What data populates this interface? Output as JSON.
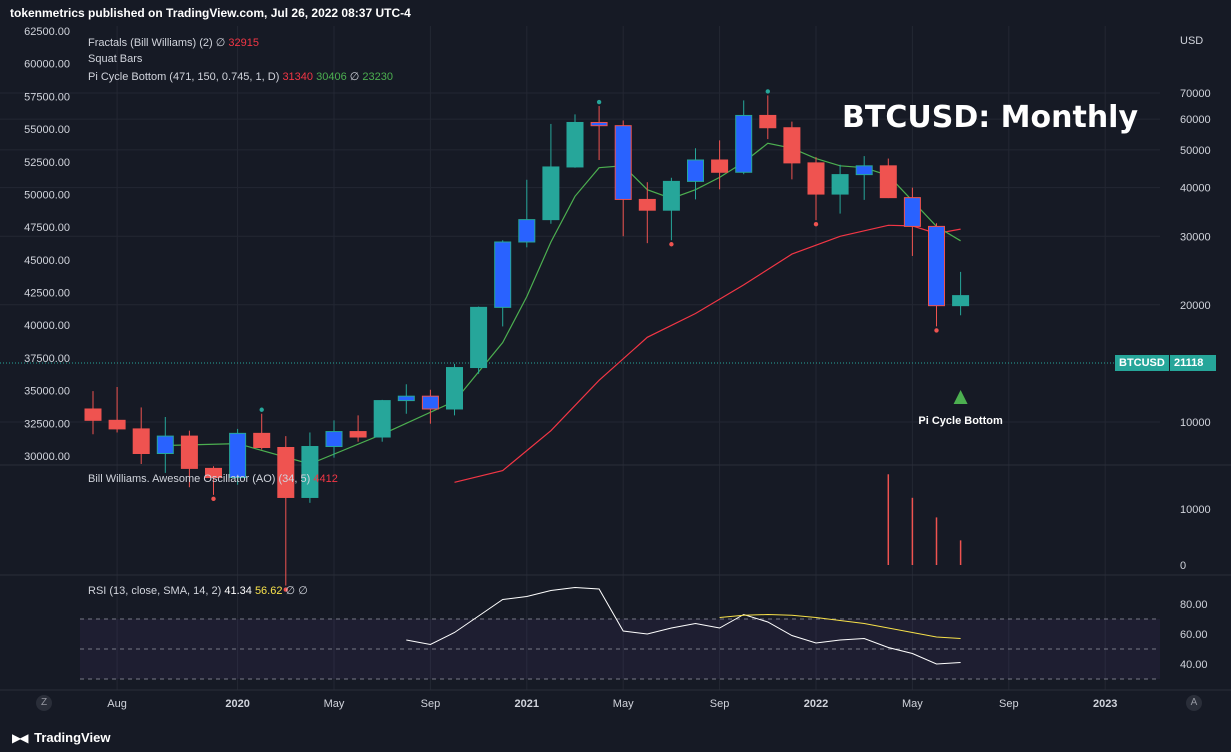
{
  "header": {
    "publisher_line": "tokenmetrics published on TradingView.com, Jul 26, 2022 08:37 UTC-4"
  },
  "footer": {
    "brand": "TradingView",
    "zoom_btn": "Z",
    "auto_btn": "A"
  },
  "colors": {
    "bg": "#161a25",
    "up": "#26a69a",
    "down": "#ef5350",
    "squat": "#2962ff",
    "fast_ma": "#4caf50",
    "slow_ma": "#f23645",
    "rsi": "#ffffff",
    "rsi_ma": "#f7e14a"
  },
  "chart_data": {
    "type": "candlestick",
    "title": "BTCUSD: Monthly",
    "symbol": "BTCUSD",
    "last_price": "21118",
    "right_axis_label": "USD",
    "annotation": "Pi Cycle Bottom",
    "legend": {
      "fractals": {
        "name": "Fractals (Bill Williams) (2)",
        "sym": "∅",
        "value": "32915"
      },
      "squat": {
        "name": "Squat Bars"
      },
      "pi": {
        "name": "Pi Cycle Bottom (471, 150, 0.745, 1, D)",
        "v1": "31340",
        "v2": "30406",
        "sym": "∅",
        "v3": "23230"
      }
    },
    "left_axis_ticks": [
      "62500.00",
      "60000.00",
      "57500.00",
      "55000.00",
      "52500.00",
      "50000.00",
      "47500.00",
      "45000.00",
      "42500.00",
      "40000.00",
      "37500.00",
      "35000.00",
      "32500.00",
      "30000.00"
    ],
    "right_axis_ticks": [
      70000,
      60000,
      50000,
      40000,
      30000,
      20000,
      10000
    ],
    "x_tick_labels": [
      "Aug",
      "2020",
      "May",
      "Sep",
      "2021",
      "May",
      "Sep",
      "2022",
      "May",
      "Sep",
      "2023"
    ],
    "candles": [
      {
        "date": "2019-07",
        "open": 10800,
        "high": 12000,
        "low": 9300,
        "close": 10100,
        "squat": false
      },
      {
        "date": "2019-08",
        "open": 10100,
        "high": 12300,
        "low": 9400,
        "close": 9600,
        "squat": false
      },
      {
        "date": "2019-09",
        "open": 9600,
        "high": 10900,
        "low": 7800,
        "close": 8300,
        "squat": false
      },
      {
        "date": "2019-10",
        "open": 8300,
        "high": 10300,
        "low": 7400,
        "close": 9200,
        "squat": true
      },
      {
        "date": "2019-11",
        "open": 9200,
        "high": 9500,
        "low": 6800,
        "close": 7600,
        "squat": false
      },
      {
        "date": "2019-12",
        "open": 7600,
        "high": 7700,
        "low": 6500,
        "close": 7200,
        "squat": false
      },
      {
        "date": "2020-01",
        "open": 7200,
        "high": 9600,
        "low": 6900,
        "close": 9350,
        "squat": true
      },
      {
        "date": "2020-02",
        "open": 9350,
        "high": 10500,
        "low": 8500,
        "close": 8600,
        "squat": false
      },
      {
        "date": "2020-03",
        "open": 8600,
        "high": 9200,
        "low": 3800,
        "close": 6400,
        "squat": false
      },
      {
        "date": "2020-04",
        "open": 6400,
        "high": 9400,
        "low": 6200,
        "close": 8650,
        "squat": false
      },
      {
        "date": "2020-05",
        "open": 8650,
        "high": 10100,
        "low": 8100,
        "close": 9450,
        "squat": true
      },
      {
        "date": "2020-06",
        "open": 9450,
        "high": 10400,
        "low": 8900,
        "close": 9150,
        "squat": false
      },
      {
        "date": "2020-07",
        "open": 9150,
        "high": 11400,
        "low": 8900,
        "close": 11350,
        "squat": false
      },
      {
        "date": "2020-08",
        "open": 11350,
        "high": 12500,
        "low": 10500,
        "close": 11650,
        "squat": true
      },
      {
        "date": "2020-09",
        "open": 11650,
        "high": 12100,
        "low": 9900,
        "close": 10800,
        "squat": true
      },
      {
        "date": "2020-10",
        "open": 10800,
        "high": 14100,
        "low": 10400,
        "close": 13800,
        "squat": false
      },
      {
        "date": "2020-11",
        "open": 13800,
        "high": 19800,
        "low": 13300,
        "close": 19700,
        "squat": false
      },
      {
        "date": "2020-12",
        "open": 19700,
        "high": 29300,
        "low": 17600,
        "close": 29000,
        "squat": true
      },
      {
        "date": "2021-01",
        "open": 29000,
        "high": 41900,
        "low": 28100,
        "close": 33100,
        "squat": true
      },
      {
        "date": "2021-02",
        "open": 33100,
        "high": 58300,
        "low": 32300,
        "close": 45200,
        "squat": false
      },
      {
        "date": "2021-03",
        "open": 45200,
        "high": 61700,
        "low": 45000,
        "close": 58800,
        "squat": false
      },
      {
        "date": "2021-04",
        "open": 58800,
        "high": 64800,
        "low": 47100,
        "close": 57700,
        "squat": true
      },
      {
        "date": "2021-05",
        "open": 57700,
        "high": 59500,
        "low": 30000,
        "close": 37300,
        "squat": true
      },
      {
        "date": "2021-06",
        "open": 37300,
        "high": 41300,
        "low": 28800,
        "close": 35000,
        "squat": false
      },
      {
        "date": "2021-07",
        "open": 35000,
        "high": 42400,
        "low": 29300,
        "close": 41500,
        "squat": false
      },
      {
        "date": "2021-08",
        "open": 41500,
        "high": 50500,
        "low": 37300,
        "close": 47100,
        "squat": true
      },
      {
        "date": "2021-09",
        "open": 47100,
        "high": 52900,
        "low": 39600,
        "close": 43800,
        "squat": false
      },
      {
        "date": "2021-10",
        "open": 43800,
        "high": 67000,
        "low": 43300,
        "close": 61300,
        "squat": true
      },
      {
        "date": "2021-11",
        "open": 61300,
        "high": 69000,
        "low": 53300,
        "close": 57000,
        "squat": false
      },
      {
        "date": "2021-12",
        "open": 57000,
        "high": 59100,
        "low": 42000,
        "close": 46300,
        "squat": false
      },
      {
        "date": "2022-01",
        "open": 46300,
        "high": 47900,
        "low": 33000,
        "close": 38500,
        "squat": false
      },
      {
        "date": "2022-02",
        "open": 38500,
        "high": 45800,
        "low": 34300,
        "close": 43200,
        "squat": false
      },
      {
        "date": "2022-03",
        "open": 43200,
        "high": 48200,
        "low": 37200,
        "close": 45500,
        "squat": true
      },
      {
        "date": "2022-04",
        "open": 45500,
        "high": 47500,
        "low": 37600,
        "close": 37700,
        "squat": false
      },
      {
        "date": "2022-05",
        "open": 37700,
        "high": 40000,
        "low": 26700,
        "close": 31800,
        "squat": true
      },
      {
        "date": "2022-06",
        "open": 31800,
        "high": 32400,
        "low": 17600,
        "close": 19900,
        "squat": true
      },
      {
        "date": "2022-07",
        "open": 19900,
        "high": 24300,
        "low": 18800,
        "close": 21118,
        "squat": false
      }
    ],
    "fractal_highs": [
      "2021-04",
      "2021-11",
      "2020-02"
    ],
    "fractal_lows": [
      "2019-12",
      "2020-03",
      "2021-07",
      "2022-01",
      "2022-06"
    ],
    "pi_fast_line": [
      {
        "date": "2019-10",
        "v": 8700
      },
      {
        "date": "2020-01",
        "v": 8800
      },
      {
        "date": "2020-04",
        "v": 7800
      },
      {
        "date": "2020-07",
        "v": 9300
      },
      {
        "date": "2020-10",
        "v": 11300
      },
      {
        "date": "2020-12",
        "v": 16000
      },
      {
        "date": "2021-01",
        "v": 21000
      },
      {
        "date": "2021-02",
        "v": 29000
      },
      {
        "date": "2021-03",
        "v": 38000
      },
      {
        "date": "2021-04",
        "v": 45000
      },
      {
        "date": "2021-05",
        "v": 45500
      },
      {
        "date": "2021-06",
        "v": 39500
      },
      {
        "date": "2021-07",
        "v": 37500
      },
      {
        "date": "2021-08",
        "v": 39500
      },
      {
        "date": "2021-09",
        "v": 42500
      },
      {
        "date": "2021-10",
        "v": 46500
      },
      {
        "date": "2021-11",
        "v": 52000
      },
      {
        "date": "2021-12",
        "v": 50500
      },
      {
        "date": "2022-01",
        "v": 47500
      },
      {
        "date": "2022-02",
        "v": 45500
      },
      {
        "date": "2022-03",
        "v": 45000
      },
      {
        "date": "2022-04",
        "v": 43000
      },
      {
        "date": "2022-05",
        "v": 37000
      },
      {
        "date": "2022-06",
        "v": 31800
      },
      {
        "date": "2022-07",
        "v": 29200
      }
    ],
    "pi_slow_line": [
      {
        "date": "2020-10",
        "v": 7000
      },
      {
        "date": "2020-12",
        "v": 7500
      },
      {
        "date": "2021-02",
        "v": 9500
      },
      {
        "date": "2021-04",
        "v": 12800
      },
      {
        "date": "2021-06",
        "v": 16500
      },
      {
        "date": "2021-08",
        "v": 19000
      },
      {
        "date": "2021-10",
        "v": 22500
      },
      {
        "date": "2021-12",
        "v": 27000
      },
      {
        "date": "2022-02",
        "v": 30000
      },
      {
        "date": "2022-04",
        "v": 32000
      },
      {
        "date": "2022-05",
        "v": 31900
      },
      {
        "date": "2022-06",
        "v": 30500
      },
      {
        "date": "2022-07",
        "v": 31300
      }
    ],
    "ao": {
      "name": "Bill Williams. Awesome Oscillator (AO) (34, 5)",
      "value": "4412",
      "ticks": [
        10000,
        0
      ],
      "bars": [
        {
          "date": "2022-04",
          "v": 16200
        },
        {
          "date": "2022-05",
          "v": 12000
        },
        {
          "date": "2022-06",
          "v": 8500
        },
        {
          "date": "2022-07",
          "v": 4400
        }
      ]
    },
    "rsi": {
      "name": "RSI (13, close, SMA, 14, 2)",
      "value": "41.34",
      "ma_value": "56.62",
      "sym1": "∅",
      "sym2": "∅",
      "ticks": [
        "80.00",
        "60.00",
        "40.00"
      ],
      "upper_band": 70,
      "mid": 50,
      "lower_band": 30,
      "values": [
        {
          "date": "2020-08",
          "v": 56
        },
        {
          "date": "2020-09",
          "v": 53
        },
        {
          "date": "2020-10",
          "v": 61
        },
        {
          "date": "2020-11",
          "v": 72
        },
        {
          "date": "2020-12",
          "v": 83
        },
        {
          "date": "2021-01",
          "v": 85
        },
        {
          "date": "2021-02",
          "v": 89
        },
        {
          "date": "2021-03",
          "v": 91
        },
        {
          "date": "2021-04",
          "v": 90
        },
        {
          "date": "2021-05",
          "v": 62
        },
        {
          "date": "2021-06",
          "v": 60
        },
        {
          "date": "2021-07",
          "v": 64
        },
        {
          "date": "2021-08",
          "v": 67
        },
        {
          "date": "2021-09",
          "v": 64
        },
        {
          "date": "2021-10",
          "v": 73
        },
        {
          "date": "2021-11",
          "v": 68
        },
        {
          "date": "2021-12",
          "v": 59
        },
        {
          "date": "2022-01",
          "v": 54
        },
        {
          "date": "2022-02",
          "v": 56
        },
        {
          "date": "2022-03",
          "v": 57
        },
        {
          "date": "2022-04",
          "v": 51
        },
        {
          "date": "2022-05",
          "v": 47
        },
        {
          "date": "2022-06",
          "v": 40
        },
        {
          "date": "2022-07",
          "v": 41
        }
      ],
      "ma_values": [
        {
          "date": "2021-09",
          "v": 71
        },
        {
          "date": "2021-10",
          "v": 72.5
        },
        {
          "date": "2021-11",
          "v": 73
        },
        {
          "date": "2021-12",
          "v": 72.5
        },
        {
          "date": "2022-01",
          "v": 71
        },
        {
          "date": "2022-02",
          "v": 69
        },
        {
          "date": "2022-03",
          "v": 67
        },
        {
          "date": "2022-04",
          "v": 64
        },
        {
          "date": "2022-05",
          "v": 61
        },
        {
          "date": "2022-06",
          "v": 58
        },
        {
          "date": "2022-07",
          "v": 57
        }
      ]
    }
  }
}
